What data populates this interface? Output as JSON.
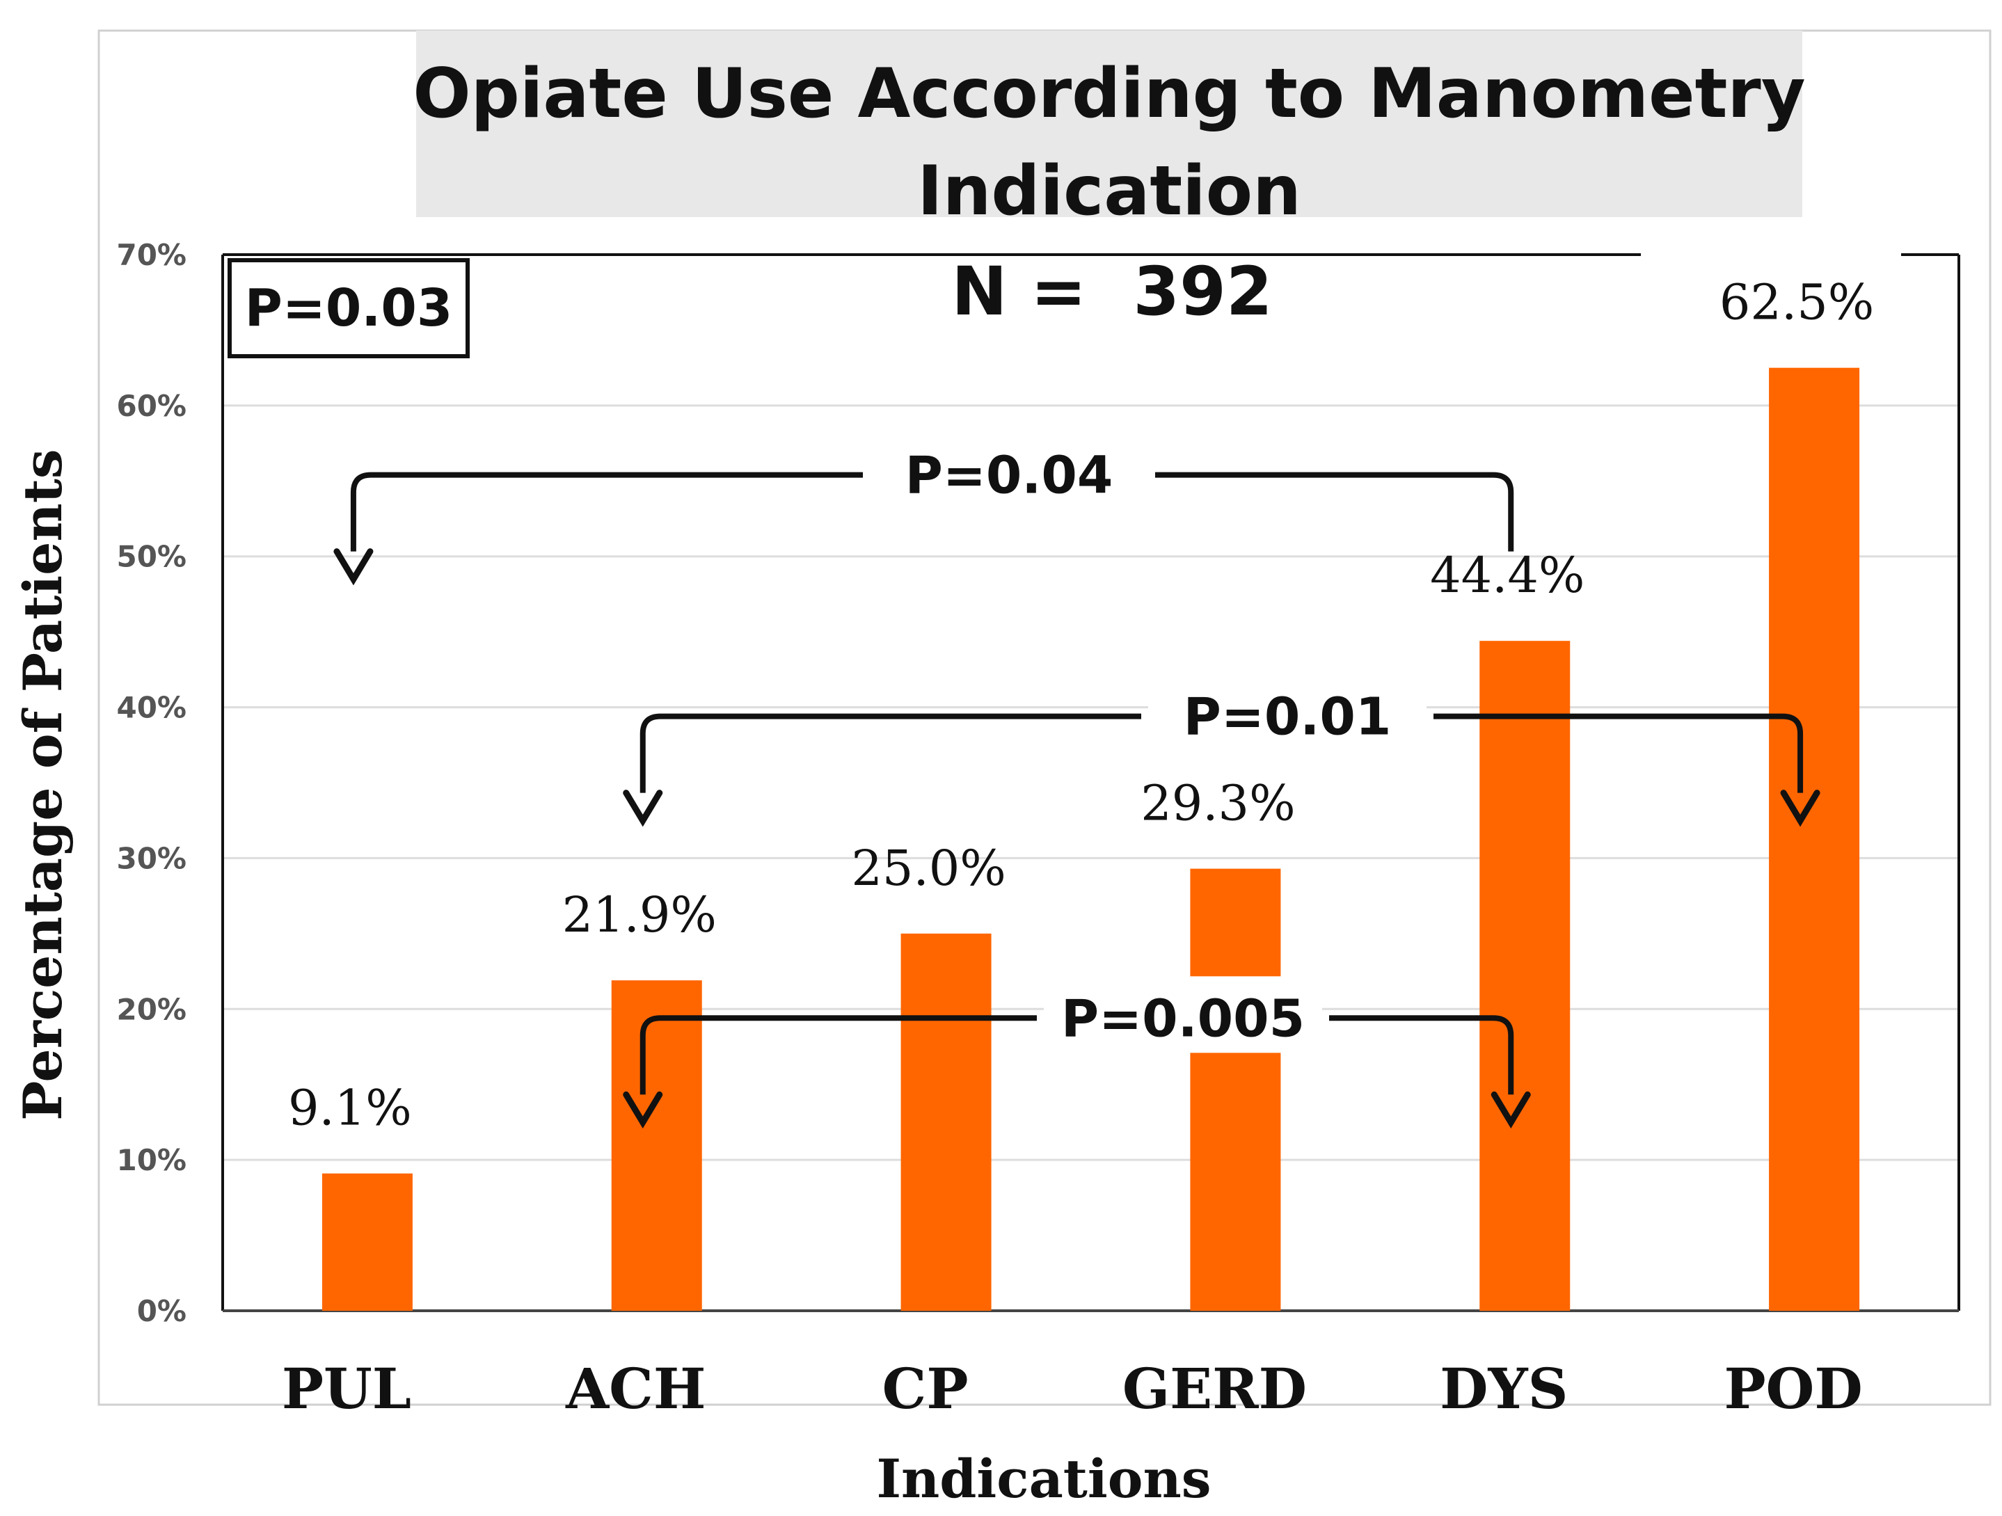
{
  "chart_data": {
    "type": "bar",
    "title": "Opiate Use According to Manometry Indication",
    "title_lines": [
      "Opiate Use According to Manometry",
      "Indication"
    ],
    "categories": [
      "PUL",
      "ACH",
      "CP",
      "GERD",
      "DYS",
      "POD"
    ],
    "values": [
      9.1,
      21.9,
      25.0,
      29.3,
      44.4,
      62.5
    ],
    "value_labels": [
      "9.1%",
      "21.9%",
      "25.0%",
      "29.3%",
      "44.4%",
      "62.5%"
    ],
    "xlabel": "Indications",
    "ylabel": "Percentage of Patients",
    "ylim": [
      0,
      70
    ],
    "yticks": [
      "0%",
      "10%",
      "20%",
      "30%",
      "40%",
      "50%",
      "60%",
      "70%"
    ],
    "grid": true,
    "bar_color": "#ff6600",
    "annotations": {
      "overall_p": "P=0.03",
      "n_label": "N =  392",
      "comparisons": [
        {
          "label": "P=0.04",
          "from": "DYS",
          "to": "PUL"
        },
        {
          "label": "P=0.01",
          "from": "POD",
          "to": "ACH"
        },
        {
          "label": "P=0.005",
          "from": "ACH",
          "to": "DYS"
        }
      ]
    }
  }
}
